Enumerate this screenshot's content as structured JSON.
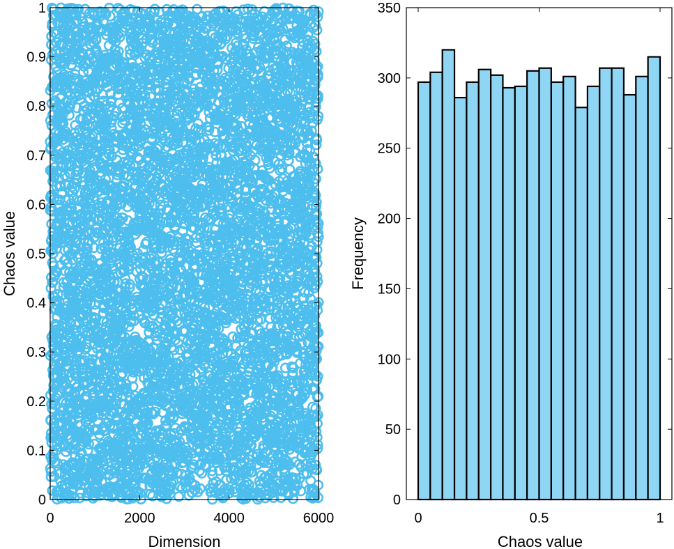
{
  "chart_data": [
    {
      "type": "scatter",
      "xlabel": "Dimension",
      "ylabel": "Chaos value",
      "xlim": [
        0,
        6000
      ],
      "ylim": [
        0,
        1
      ],
      "xticks": [
        0,
        2000,
        4000,
        6000
      ],
      "yticks": [
        0,
        0.1,
        0.2,
        0.3,
        0.4,
        0.5,
        0.6,
        0.7,
        0.8,
        0.9,
        1
      ],
      "marker": "open-circle",
      "point_count": 6000,
      "distribution": "uniform",
      "color": "#4DBEEE",
      "grid": false
    },
    {
      "type": "bar",
      "xlabel": "Chaos value",
      "ylabel": "Frequency",
      "xlim": [
        0,
        1
      ],
      "ylim": [
        0,
        350
      ],
      "xticks": [
        0,
        0.5,
        1
      ],
      "yticks": [
        0,
        50,
        100,
        150,
        200,
        250,
        300,
        350
      ],
      "bin_edges": [
        0,
        0.05,
        0.1,
        0.15,
        0.2,
        0.25,
        0.3,
        0.35,
        0.4,
        0.45,
        0.5,
        0.55,
        0.6,
        0.65,
        0.7,
        0.75,
        0.8,
        0.85,
        0.9,
        0.95,
        1
      ],
      "values": [
        297,
        304,
        320,
        286,
        297,
        306,
        302,
        293,
        294,
        305,
        307,
        297,
        301,
        279,
        294,
        307,
        307,
        288,
        301,
        315
      ],
      "fill_color": "#8FD6F5",
      "edge_color": "#000000",
      "grid": false
    }
  ]
}
